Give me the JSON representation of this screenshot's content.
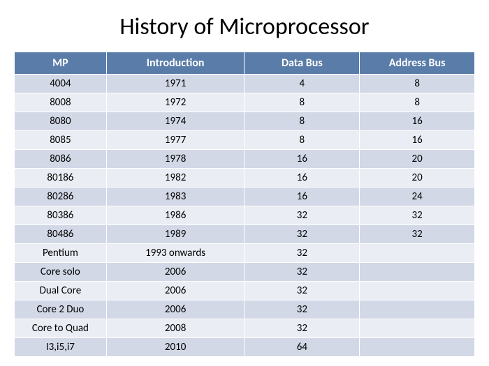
{
  "title": "History of Microprocessor",
  "table": {
    "type": "table",
    "header_bg": "#5a7ca9",
    "header_color": "#ffffff",
    "row_odd_bg": "#d2d8e6",
    "row_even_bg": "#eaedf4",
    "header_fontsize": 16,
    "cell_fontsize": 15,
    "columns": [
      "MP",
      "Introduction",
      "Data Bus",
      "Address Bus"
    ],
    "column_widths": [
      "20%",
      "30%",
      "25%",
      "25%"
    ],
    "rows": [
      [
        "4004",
        "1971",
        "4",
        "8"
      ],
      [
        "8008",
        "1972",
        "8",
        "8"
      ],
      [
        "8080",
        "1974",
        "8",
        "16"
      ],
      [
        "8085",
        "1977",
        "8",
        "16"
      ],
      [
        "8086",
        "1978",
        "16",
        "20"
      ],
      [
        "80186",
        "1982",
        "16",
        "20"
      ],
      [
        "80286",
        "1983",
        "16",
        "24"
      ],
      [
        "80386",
        "1986",
        "32",
        "32"
      ],
      [
        "80486",
        "1989",
        "32",
        "32"
      ],
      [
        "Pentium",
        "1993 onwards",
        "32",
        ""
      ],
      [
        "Core solo",
        "2006",
        "32",
        ""
      ],
      [
        "Dual Core",
        "2006",
        "32",
        ""
      ],
      [
        "Core 2 Duo",
        "2006",
        "32",
        ""
      ],
      [
        "Core to Quad",
        "2008",
        "32",
        ""
      ],
      [
        "I3,i5,i7",
        "2010",
        "64",
        ""
      ]
    ]
  }
}
